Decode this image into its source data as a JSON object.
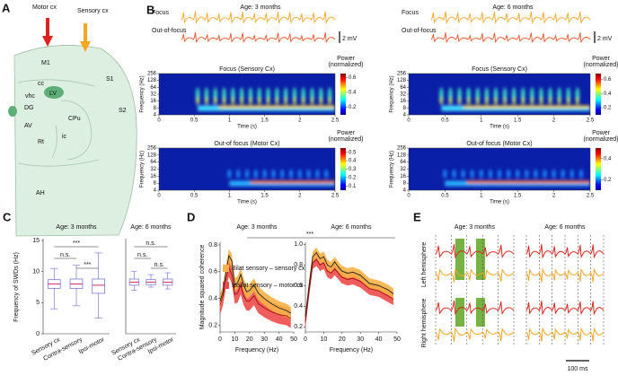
{
  "figure": {
    "panel_a": {
      "label": "A",
      "arrows": [
        "Motor cx",
        "Sensory cx"
      ],
      "regions": [
        "M1",
        "S1",
        "cc",
        "LV",
        "vhc",
        "DG",
        "CPu",
        "S2",
        "AV",
        "ic",
        "Rt",
        "AH"
      ]
    },
    "panel_b": {
      "label": "B",
      "columns": [
        {
          "title": "Age: 3 months",
          "traces": [
            "Focus",
            "Out-of-focus"
          ],
          "scale_bar": "2 mV",
          "spectrograms": [
            {
              "title": "Focus (Sensory Cx)",
              "ylabel": "Frequency (Hz)",
              "xlabel": "Time (s)",
              "ylim": [
                4,
                256
              ],
              "log_y": true,
              "yticks": [
                4,
                8,
                16,
                32,
                64,
                128,
                256
              ],
              "xlim": [
                0,
                2.5
              ],
              "xticks": [
                0,
                0.5,
                1,
                1.5,
                2,
                2.5
              ],
              "colorbar_title": [
                "Power",
                "(normalized)"
              ],
              "colorbar_lim": [
                0.1,
                0.65
              ],
              "colorbar_ticks": [
                0.2,
                0.4,
                0.6
              ]
            },
            {
              "title": "Out-of focus (Motor Cx)",
              "ylabel": "Frequency (Hz)",
              "xlabel": "Time (s)",
              "ylim": [
                4,
                256
              ],
              "log_y": true,
              "yticks": [
                4,
                8,
                16,
                32,
                64,
                128,
                256
              ],
              "xlim": [
                0,
                2.5
              ],
              "xticks": [
                0,
                0.5,
                1,
                1.5,
                2,
                2.5
              ],
              "colorbar_title": [
                "Power",
                "(normalized)"
              ],
              "colorbar_lim": [
                0.05,
                0.55
              ],
              "colorbar_ticks": [
                0.1,
                0.2,
                0.3,
                0.4,
                0.5
              ]
            }
          ]
        },
        {
          "title": "Age: 6 months",
          "traces": [
            "Focus",
            "Out-of-focus"
          ],
          "scale_bar": "2 mV",
          "spectrograms": [
            {
              "title": "Focus (Sensory Cx)",
              "ylabel": "Frequency (Hz)",
              "xlabel": "Time (s)",
              "ylim": [
                4,
                256
              ],
              "log_y": true,
              "yticks": [
                4,
                8,
                16,
                32,
                64,
                128,
                256
              ],
              "xlim": [
                0,
                2.5
              ],
              "xticks": [
                0,
                0.5,
                1,
                1.5,
                2,
                2.5
              ],
              "colorbar_title": [
                "Power",
                "(normalized)"
              ],
              "colorbar_lim": [
                0.1,
                0.68
              ],
              "colorbar_ticks": [
                0.2,
                0.4,
                0.6
              ]
            },
            {
              "title": "Out-of focus (Motor Cx)",
              "ylabel": "Frequency (Hz)",
              "xlabel": "Time (s)",
              "ylim": [
                4,
                256
              ],
              "log_y": true,
              "yticks": [
                4,
                8,
                16,
                32,
                64,
                128,
                256
              ],
              "xlim": [
                0,
                2.5
              ],
              "xticks": [
                0,
                0.5,
                1,
                1.5,
                2,
                2.5
              ],
              "colorbar_title": [
                "Power",
                "(normalized)"
              ],
              "colorbar_lim": [
                0.1,
                0.5
              ],
              "colorbar_ticks": [
                0.2,
                0.4
              ]
            }
          ]
        }
      ]
    },
    "panel_c": {
      "label": "C"
    },
    "panel_d": {
      "label": "D",
      "annotation": "***"
    },
    "panel_e": {
      "label": "E",
      "titles": [
        "Age: 3 months",
        "Age: 6 months"
      ],
      "rows": [
        "Left hemisphere",
        "Right hemisphere"
      ],
      "scale_bar": "100 ms"
    }
  },
  "chart_data": [
    {
      "type": "box",
      "title": "Age: 3 months",
      "ylabel": "Frequency of SWDs (Hz)",
      "categories": [
        "Sensory cx",
        "Contra-sensory",
        "Ipsi-motor"
      ],
      "color": "#7b7bd6",
      "median_color": "#d0306a",
      "ylim": [
        0,
        15
      ],
      "yticks": [
        0,
        5,
        10,
        15
      ],
      "whislo": [
        4,
        4.5,
        2.5
      ],
      "q1": [
        7.3,
        7.3,
        6.5
      ],
      "median": [
        8,
        8,
        7.8
      ],
      "q3": [
        8.7,
        8.8,
        8.8
      ],
      "whishi": [
        10.5,
        11,
        13
      ],
      "annotations": [
        "***",
        "n.s.",
        "***"
      ]
    },
    {
      "type": "box",
      "title": "Age: 6 months",
      "categories": [
        "Sensory cx",
        "Contra-sensory",
        "Ipsi-motor"
      ],
      "color": "#7b7bd6",
      "median_color": "#d0306a",
      "ylim": [
        0,
        15
      ],
      "whislo": [
        7,
        7.5,
        7.2
      ],
      "q1": [
        7.8,
        7.9,
        7.8
      ],
      "median": [
        8.3,
        8.3,
        8.3
      ],
      "q3": [
        8.8,
        8.7,
        8.8
      ],
      "whishi": [
        10,
        9.5,
        9.8
      ],
      "annotations": [
        "n.s.",
        "n.s.",
        "n.s."
      ]
    },
    {
      "type": "line",
      "title": "Age: 3 months",
      "xlabel": "Frequency (Hz)",
      "ylabel": "Magnitude squared coherence",
      "x": [
        0,
        2,
        4,
        6,
        8,
        10,
        12,
        14,
        16,
        18,
        20,
        23,
        26,
        30,
        35,
        40,
        45,
        48
      ],
      "xlim": [
        0,
        50
      ],
      "xticks": [
        0,
        10,
        20,
        30,
        40,
        50
      ],
      "ylim": [
        0.15,
        0.82
      ],
      "yticks": [
        0.2,
        0.4,
        0.6,
        0.8
      ],
      "series": [
        {
          "name": "Ipsilat sensory – motor cx",
          "color": "#ee4b4b",
          "line_color": "#a01010",
          "values": [
            0.35,
            0.42,
            0.55,
            0.63,
            0.58,
            0.43,
            0.44,
            0.5,
            0.42,
            0.38,
            0.38,
            0.42,
            0.36,
            0.33,
            0.3,
            0.28,
            0.27,
            0.25
          ],
          "upper": [
            0.42,
            0.49,
            0.62,
            0.7,
            0.65,
            0.5,
            0.51,
            0.57,
            0.49,
            0.45,
            0.45,
            0.49,
            0.43,
            0.4,
            0.37,
            0.35,
            0.34,
            0.32
          ],
          "lower": [
            0.28,
            0.35,
            0.48,
            0.56,
            0.51,
            0.36,
            0.37,
            0.43,
            0.35,
            0.31,
            0.31,
            0.35,
            0.29,
            0.26,
            0.23,
            0.21,
            0.2,
            0.18
          ]
        },
        {
          "name": "Bilat sensory – sensory cx",
          "color": "#f7b347",
          "line_color": "#222222",
          "values": [
            0.38,
            0.45,
            0.6,
            0.72,
            0.68,
            0.5,
            0.52,
            0.58,
            0.5,
            0.45,
            0.46,
            0.5,
            0.44,
            0.4,
            0.36,
            0.33,
            0.31,
            0.29
          ],
          "upper": [
            0.43,
            0.5,
            0.65,
            0.77,
            0.73,
            0.55,
            0.57,
            0.63,
            0.55,
            0.5,
            0.51,
            0.55,
            0.49,
            0.45,
            0.41,
            0.38,
            0.36,
            0.34
          ],
          "lower": [
            0.33,
            0.4,
            0.55,
            0.67,
            0.63,
            0.45,
            0.47,
            0.53,
            0.45,
            0.4,
            0.41,
            0.45,
            0.39,
            0.35,
            0.31,
            0.28,
            0.26,
            0.24
          ]
        }
      ]
    },
    {
      "type": "line",
      "title": "Age: 6 months",
      "xlabel": "Frequency (Hz)",
      "x": [
        0,
        2,
        4,
        6,
        8,
        10,
        12,
        14,
        16,
        18,
        20,
        23,
        26,
        30,
        35,
        40,
        45,
        48
      ],
      "xlim": [
        0,
        50
      ],
      "xticks": [
        0,
        10,
        20,
        30,
        40,
        50
      ],
      "ylim": [
        0.15,
        1.02
      ],
      "yticks": [
        0.2,
        0.4,
        0.6,
        0.8,
        {
          "value": 1,
          "label": "1.0"
        }
      ],
      "series": [
        {
          "color": "#ee4b4b",
          "line_color": "#a01010",
          "values": [
            0.25,
            0.55,
            0.82,
            0.85,
            0.8,
            0.82,
            0.74,
            0.72,
            0.76,
            0.72,
            0.68,
            0.66,
            0.67,
            0.64,
            0.57,
            0.55,
            0.5,
            0.47
          ],
          "upper": [
            0.31,
            0.61,
            0.88,
            0.91,
            0.86,
            0.88,
            0.8,
            0.78,
            0.82,
            0.78,
            0.74,
            0.72,
            0.73,
            0.7,
            0.63,
            0.61,
            0.56,
            0.53
          ],
          "lower": [
            0.19,
            0.49,
            0.76,
            0.79,
            0.74,
            0.76,
            0.68,
            0.66,
            0.7,
            0.66,
            0.62,
            0.6,
            0.61,
            0.58,
            0.51,
            0.49,
            0.44,
            0.41
          ]
        },
        {
          "color": "#f7b347",
          "line_color": "#222222",
          "values": [
            0.3,
            0.6,
            0.88,
            0.92,
            0.86,
            0.88,
            0.8,
            0.78,
            0.83,
            0.78,
            0.74,
            0.72,
            0.73,
            0.7,
            0.62,
            0.6,
            0.56,
            0.52
          ],
          "upper": [
            0.35,
            0.65,
            0.93,
            0.97,
            0.91,
            0.93,
            0.85,
            0.83,
            0.88,
            0.83,
            0.79,
            0.77,
            0.78,
            0.75,
            0.67,
            0.65,
            0.61,
            0.57
          ],
          "lower": [
            0.25,
            0.55,
            0.83,
            0.87,
            0.81,
            0.83,
            0.75,
            0.73,
            0.78,
            0.73,
            0.69,
            0.67,
            0.68,
            0.65,
            0.57,
            0.55,
            0.51,
            0.47
          ]
        }
      ]
    }
  ]
}
